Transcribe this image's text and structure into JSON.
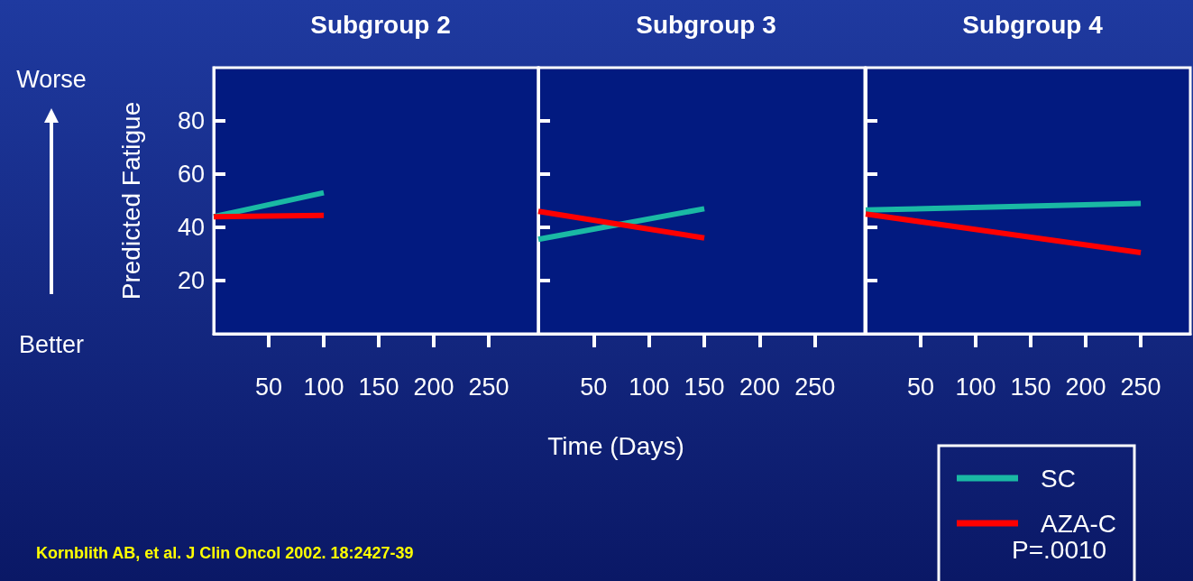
{
  "chart_data": [
    {
      "type": "line",
      "title": "Subgroup 2",
      "ylabel": "Predicted Fatigue",
      "xlim": [
        0,
        295
      ],
      "ylim": [
        0,
        100
      ],
      "xticks": [
        50,
        100,
        150,
        200,
        250
      ],
      "yticks": [
        20,
        40,
        60,
        80
      ],
      "grid": false,
      "legend": false,
      "annotations": [
        "Worse",
        "Better",
        "Kornblith AB, et al. J Clin Oncol 2002. 18:2427-39"
      ],
      "series": [
        {
          "color": "#1ab9a4",
          "x": [
            0,
            100
          ],
          "values": [
            44,
            53
          ]
        },
        {
          "color": "#ff0000",
          "x": [
            0,
            100
          ],
          "values": [
            44,
            44.5
          ]
        }
      ]
    },
    {
      "type": "line",
      "title": "Subgroup 3",
      "xlabel": "Time (Days)",
      "xlim": [
        0,
        295
      ],
      "ylim": [
        0,
        100
      ],
      "xticks": [
        50,
        100,
        150,
        200,
        250
      ],
      "yticks": [
        20,
        40,
        60,
        80
      ],
      "grid": false,
      "legend": false,
      "tick_labels": "x",
      "series": [
        {
          "color": "#1ab9a4",
          "x": [
            0,
            150
          ],
          "values": [
            35.5,
            47
          ]
        },
        {
          "color": "#ff0000",
          "x": [
            0,
            150
          ],
          "values": [
            46,
            36
          ]
        }
      ]
    },
    {
      "type": "line",
      "title": "Subgroup 4",
      "xlim": [
        0,
        295
      ],
      "ylim": [
        0,
        100
      ],
      "xticks": [
        50,
        100,
        150,
        200,
        250
      ],
      "yticks": [
        20,
        40,
        60,
        80
      ],
      "grid": false,
      "legend": "bottom right",
      "tick_labels": "x",
      "annotations": [
        "P=.0010"
      ],
      "series": [
        {
          "name": "SC",
          "color": "#1ab9a4",
          "x": [
            0,
            250
          ],
          "values": [
            46.5,
            49
          ]
        },
        {
          "name": "AZA-C",
          "color": "#ff0000",
          "x": [
            0,
            250
          ],
          "values": [
            45,
            30.5
          ]
        }
      ]
    }
  ]
}
